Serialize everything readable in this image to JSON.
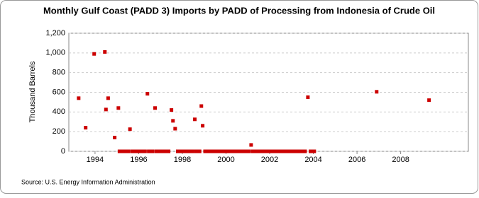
{
  "chart_data": {
    "type": "scatter",
    "title": "Monthly Gulf Coast (PADD 3) Imports by PADD of Processing from Indonesia of Crude Oil",
    "y_label": "Thousand Barrels",
    "source": "Source: U.S. Energy Information Administration",
    "color": "#cc0000",
    "grid": true,
    "xlim": [
      1992.8,
      2011.1
    ],
    "xticks": [
      1994,
      1996,
      1998,
      2000,
      2002,
      2004,
      2006,
      2008
    ],
    "ylim": [
      0,
      1200
    ],
    "yticks": [
      0,
      200,
      400,
      600,
      800,
      {
        "value": 1000,
        "label": "1,000"
      },
      {
        "value": 1200,
        "label": "1,200"
      }
    ],
    "x": [
      1993.25,
      1993.57,
      1993.96,
      1994.45,
      1994.6,
      1994.5,
      1994.9,
      1995.07,
      1995.6,
      1996.4,
      1996.75,
      1997.5,
      1997.57,
      1997.67,
      1998.57,
      1998.87,
      1998.93,
      2001.15,
      2003.75,
      2006.9,
      2009.3,
      1995.12,
      1995.21,
      1995.29,
      1995.37,
      1995.46,
      1995.54,
      1995.71,
      1995.79,
      1995.87,
      1995.96,
      1996.04,
      1996.12,
      1996.21,
      1996.29,
      1996.46,
      1996.54,
      1996.62,
      1996.79,
      1996.87,
      1996.96,
      1997.04,
      1997.12,
      1997.21,
      1997.29,
      1997.37,
      1997.79,
      1997.87,
      1997.96,
      1998.04,
      1998.12,
      1998.21,
      1998.29,
      1998.37,
      1998.46,
      1998.62,
      1998.71,
      1998.79,
      1999.04,
      1999.12,
      1999.21,
      1999.29,
      1999.37,
      1999.46,
      1999.54,
      1999.62,
      1999.71,
      1999.79,
      1999.87,
      1999.96,
      2000.04,
      2000.12,
      2000.21,
      2000.29,
      2000.37,
      2000.46,
      2000.54,
      2000.62,
      2000.71,
      2000.79,
      2000.87,
      2000.96,
      2001.04,
      2001.21,
      2001.29,
      2001.37,
      2001.46,
      2001.54,
      2001.62,
      2001.71,
      2001.79,
      2001.87,
      2001.96,
      2002.04,
      2002.12,
      2002.21,
      2002.29,
      2002.37,
      2002.46,
      2002.54,
      2002.62,
      2002.71,
      2002.79,
      2002.87,
      2002.96,
      2003.04,
      2003.12,
      2003.21,
      2003.29,
      2003.37,
      2003.46,
      2003.54,
      2003.62,
      2003.87,
      2003.96,
      2004.04
    ],
    "values": [
      540,
      240,
      990,
      1010,
      540,
      425,
      140,
      440,
      225,
      585,
      440,
      420,
      310,
      230,
      325,
      460,
      260,
      65,
      550,
      605,
      520,
      0,
      0,
      0,
      0,
      0,
      0,
      0,
      0,
      0,
      0,
      0,
      0,
      0,
      0,
      0,
      0,
      0,
      0,
      0,
      0,
      0,
      0,
      0,
      0,
      0,
      0,
      0,
      0,
      0,
      0,
      0,
      0,
      0,
      0,
      0,
      0,
      0,
      0,
      0,
      0,
      0,
      0,
      0,
      0,
      0,
      0,
      0,
      0,
      0,
      0,
      0,
      0,
      0,
      0,
      0,
      0,
      0,
      0,
      0,
      0,
      0,
      0,
      0,
      0,
      0,
      0,
      0,
      0,
      0,
      0,
      0,
      0,
      0,
      0,
      0,
      0,
      0,
      0,
      0,
      0,
      0,
      0,
      0,
      0,
      0,
      0,
      0,
      0,
      0,
      0,
      0,
      0,
      0,
      0,
      0
    ]
  }
}
